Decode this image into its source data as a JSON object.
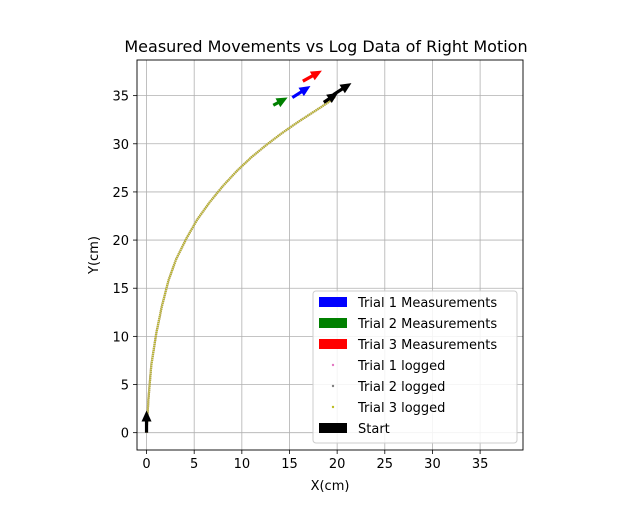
{
  "chart_data": {
    "type": "scatter",
    "title": "Measured Movements vs Log Data of Right Motion",
    "xlabel": "X(cm)",
    "ylabel": "Y(cm)",
    "xlim": [
      -1,
      39.5
    ],
    "ylim": [
      -1.8,
      38.7
    ],
    "xticks": [
      0,
      5,
      10,
      15,
      20,
      25,
      30,
      35
    ],
    "yticks": [
      0,
      5,
      10,
      15,
      20,
      25,
      30,
      35
    ],
    "grid": true,
    "legend_position": "lower-right",
    "legend": [
      {
        "label": "Trial 1 Measurements",
        "kind": "patch",
        "color": "#0000ff"
      },
      {
        "label": "Trial 2 Measurements",
        "kind": "patch",
        "color": "#008000"
      },
      {
        "label": "Trial 3 Measurements",
        "kind": "patch",
        "color": "#ff0000"
      },
      {
        "label": "Trial 1 logged",
        "kind": "dot",
        "color": "#e377c2"
      },
      {
        "label": "Trial 2 logged",
        "kind": "dot",
        "color": "#7f7f7f"
      },
      {
        "label": "Trial 3 logged",
        "kind": "dot",
        "color": "#bcbd22"
      },
      {
        "label": "Start",
        "kind": "patch",
        "color": "#000000"
      }
    ],
    "logged_path": {
      "x": [
        0,
        0.2,
        0.5,
        1.0,
        1.6,
        2.3,
        3.1,
        4.2,
        5.3,
        6.6,
        8.0,
        9.5,
        11.0,
        12.6,
        14.2,
        15.8,
        17.2,
        18.3,
        19.2,
        19.8
      ],
      "y": [
        0,
        3.5,
        7.0,
        10.2,
        13.1,
        15.8,
        18.0,
        20.2,
        22.1,
        23.9,
        25.6,
        27.2,
        28.6,
        29.9,
        31.1,
        32.2,
        33.1,
        33.8,
        34.4,
        34.9
      ]
    },
    "series": [
      {
        "name": "Trial 1 Measurements",
        "color": "#0000ff",
        "x": 15.3,
        "y": 34.8,
        "dx": 1.9,
        "dy": 1.2
      },
      {
        "name": "Trial 2 Measurements",
        "color": "#008000",
        "x": 13.3,
        "y": 34.0,
        "dx": 1.5,
        "dy": 0.8
      },
      {
        "name": "Trial 3 Measurements",
        "color": "#ff0000",
        "x": 16.4,
        "y": 36.5,
        "dx": 2.0,
        "dy": 1.1
      },
      {
        "name": "Start",
        "color": "#000000",
        "x": 0,
        "y": 0,
        "dx": 0,
        "dy": 2.3
      },
      {
        "name": "Start",
        "color": "#000000",
        "x": 18.6,
        "y": 34.3,
        "dx": 1.5,
        "dy": 1.0
      },
      {
        "name": "Start",
        "color": "#000000",
        "x": 19.6,
        "y": 35.1,
        "dx": 1.9,
        "dy": 1.2
      }
    ]
  }
}
